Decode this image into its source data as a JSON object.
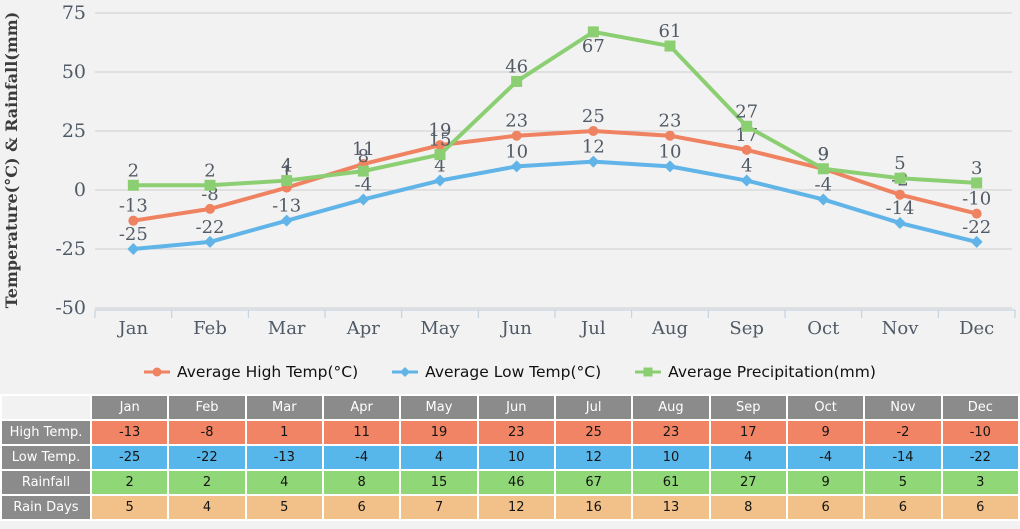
{
  "chart_data": {
    "type": "line",
    "title": "",
    "ylabel": "Temperature(°C) & Rainfall(mm)",
    "xlabel": "",
    "categories": [
      "Jan",
      "Feb",
      "Mar",
      "Apr",
      "May",
      "Jun",
      "Jul",
      "Aug",
      "Sep",
      "Oct",
      "Nov",
      "Dec"
    ],
    "yticks": [
      75,
      50,
      25,
      0,
      -25,
      -50
    ],
    "ylim": [
      -50,
      75
    ],
    "grid": true,
    "legend_position": "bottom",
    "series": [
      {
        "name": "Average High Temp(°C)",
        "marker": "circle",
        "color": "#ef8261",
        "values": [
          -13,
          -8,
          1,
          11,
          19,
          23,
          25,
          23,
          17,
          9,
          -2,
          -10
        ]
      },
      {
        "name": "Average Low Temp(°C)",
        "marker": "diamond",
        "color": "#61b4e8",
        "values": [
          -25,
          -22,
          -13,
          -4,
          4,
          10,
          12,
          10,
          4,
          -4,
          -14,
          -22
        ]
      },
      {
        "name": "Average Precipitation(mm)",
        "marker": "square",
        "color": "#8ccf72",
        "values": [
          2,
          2,
          4,
          8,
          15,
          46,
          67,
          61,
          27,
          9,
          5,
          3
        ]
      }
    ]
  },
  "table": {
    "columns": [
      "Jan",
      "Feb",
      "Mar",
      "Apr",
      "May",
      "Jun",
      "Jul",
      "Aug",
      "Sep",
      "Oct",
      "Nov",
      "Dec"
    ],
    "rows": [
      {
        "label": "High Temp.",
        "color": "#f08465",
        "values": [
          -13,
          -8,
          1,
          11,
          19,
          23,
          25,
          23,
          17,
          9,
          -2,
          -10
        ]
      },
      {
        "label": "Low Temp.",
        "color": "#58b7ea",
        "values": [
          -25,
          -22,
          -13,
          -4,
          4,
          10,
          12,
          10,
          4,
          -4,
          -14,
          -22
        ]
      },
      {
        "label": "Rainfall",
        "color": "#90d777",
        "values": [
          2,
          2,
          4,
          8,
          15,
          46,
          67,
          61,
          27,
          9,
          5,
          3
        ]
      },
      {
        "label": "Rain Days",
        "color": "#f2c189",
        "values": [
          5,
          4,
          5,
          6,
          7,
          12,
          16,
          13,
          8,
          6,
          6,
          6
        ]
      }
    ]
  },
  "colors": {
    "background": "#f2f2f2",
    "gridline": "#cdcdcd",
    "axis_line": "#bccedd",
    "tick_label": "#4f5a66",
    "data_label": "#525b66",
    "axis_title": "#3c3c3c",
    "table_header": "#8b8b8b",
    "cell_text": "#141414"
  }
}
